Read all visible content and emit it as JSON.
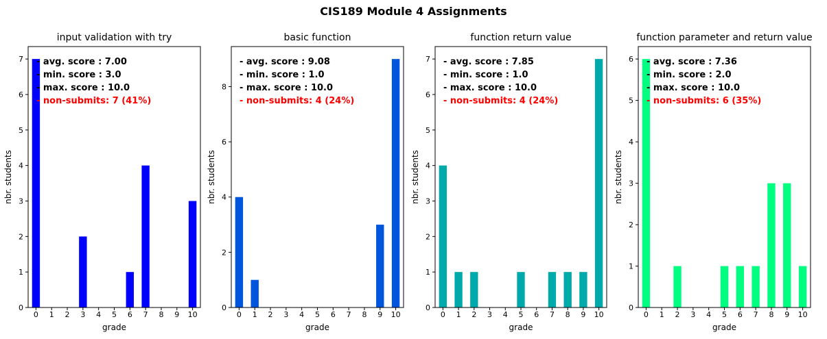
{
  "page": {
    "suptitle": "CIS189 Module 4 Assignments"
  },
  "chart_data": [
    {
      "type": "bar",
      "title": "input validation with try",
      "xlabel": "grade",
      "ylabel": "nbr. students",
      "categories": [
        "0",
        "1",
        "2",
        "3",
        "4",
        "5",
        "6",
        "7",
        "8",
        "9",
        "10"
      ],
      "values": [
        7,
        0,
        0,
        2,
        0,
        0,
        1,
        4,
        0,
        0,
        3
      ],
      "ylim": [
        0,
        7.35
      ],
      "yticks": [
        0,
        1,
        2,
        3,
        4,
        5,
        6,
        7
      ],
      "color": "#0000ff",
      "grid": false,
      "annotations": [
        {
          "text": "- avg. score : 7.00",
          "color": "#000000"
        },
        {
          "text": "- min. score : 3.0",
          "color": "#000000"
        },
        {
          "text": "- max. score : 10.0",
          "color": "#000000"
        },
        {
          "text": "- non-submits: 7 (41%)",
          "color": "#ff0000"
        }
      ]
    },
    {
      "type": "bar",
      "title": "basic function",
      "xlabel": "grade",
      "ylabel": "nbr. students",
      "categories": [
        "0",
        "1",
        "2",
        "3",
        "4",
        "5",
        "6",
        "7",
        "8",
        "9",
        "10"
      ],
      "values": [
        4,
        1,
        0,
        0,
        0,
        0,
        0,
        0,
        0,
        3,
        9
      ],
      "ylim": [
        0,
        9.45
      ],
      "yticks": [
        0,
        2,
        4,
        6,
        8
      ],
      "color": "#0055dd",
      "grid": false,
      "annotations": [
        {
          "text": "- avg. score : 9.08",
          "color": "#000000"
        },
        {
          "text": "- min. score : 1.0",
          "color": "#000000"
        },
        {
          "text": "- max. score : 10.0",
          "color": "#000000"
        },
        {
          "text": "- non-submits: 4 (24%)",
          "color": "#ff0000"
        }
      ]
    },
    {
      "type": "bar",
      "title": "function return value",
      "xlabel": "grade",
      "ylabel": "nbr. students",
      "categories": [
        "0",
        "1",
        "2",
        "3",
        "4",
        "5",
        "6",
        "7",
        "8",
        "9",
        "10"
      ],
      "values": [
        4,
        1,
        1,
        0,
        0,
        1,
        0,
        1,
        1,
        1,
        7
      ],
      "ylim": [
        0,
        7.35
      ],
      "yticks": [
        0,
        1,
        2,
        3,
        4,
        5,
        6,
        7
      ],
      "color": "#00aaaa",
      "grid": false,
      "annotations": [
        {
          "text": "- avg. score : 7.85",
          "color": "#000000"
        },
        {
          "text": "- min. score : 1.0",
          "color": "#000000"
        },
        {
          "text": "- max. score : 10.0",
          "color": "#000000"
        },
        {
          "text": "- non-submits: 4 (24%)",
          "color": "#ff0000"
        }
      ]
    },
    {
      "type": "bar",
      "title": "function parameter and return value",
      "xlabel": "grade",
      "ylabel": "nbr. students",
      "categories": [
        "0",
        "1",
        "2",
        "3",
        "4",
        "5",
        "6",
        "7",
        "8",
        "9",
        "10"
      ],
      "values": [
        6,
        0,
        1,
        0,
        0,
        1,
        1,
        1,
        3,
        3,
        1
      ],
      "ylim": [
        0,
        6.3
      ],
      "yticks": [
        0,
        1,
        2,
        3,
        4,
        5,
        6
      ],
      "color": "#00ff80",
      "grid": false,
      "annotations": [
        {
          "text": "- avg. score : 7.36",
          "color": "#000000"
        },
        {
          "text": "- min. score : 2.0",
          "color": "#000000"
        },
        {
          "text": "- max. score : 10.0",
          "color": "#000000"
        },
        {
          "text": "- non-submits: 6 (35%)",
          "color": "#ff0000"
        }
      ]
    }
  ]
}
